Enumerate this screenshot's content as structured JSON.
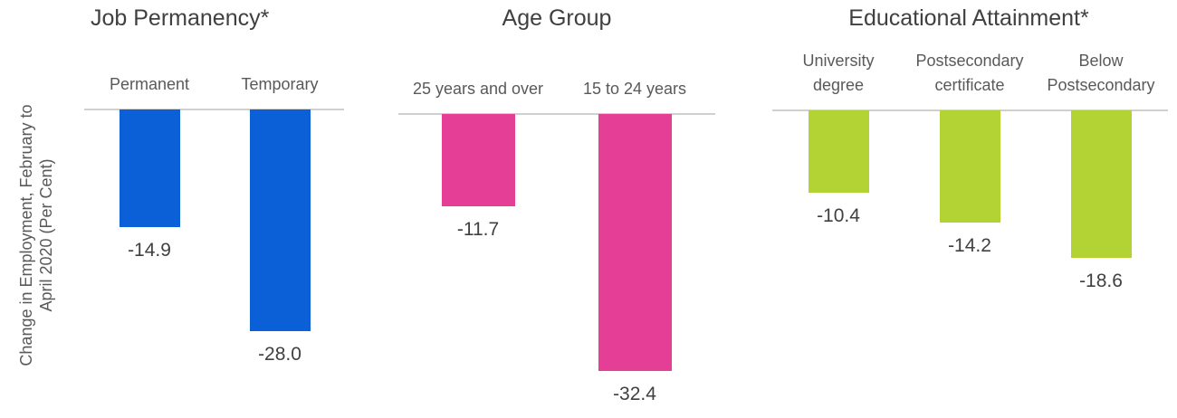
{
  "y_label": "Change in Employment, February to\nApril 2020 (Per Cent)",
  "chart_data": [
    {
      "type": "bar",
      "title": "Job Permanency*",
      "categories": [
        "Permanent",
        "Temporary"
      ],
      "values": [
        -14.9,
        -28.0
      ],
      "value_labels": [
        "-14.9",
        "-28.0"
      ],
      "color": "#0b5fd7"
    },
    {
      "type": "bar",
      "title": "Age Group",
      "categories": [
        "25 years and over",
        "15 to 24 years"
      ],
      "values": [
        -11.7,
        -32.4
      ],
      "value_labels": [
        "-11.7",
        "-32.4"
      ],
      "color": "#e43e96"
    },
    {
      "type": "bar",
      "title": "Educational Attainment*",
      "categories": [
        "University\ndegree",
        "Postsecondary\ncertificate",
        "Below\nPostsecondary"
      ],
      "values": [
        -10.4,
        -14.2,
        -18.6
      ],
      "value_labels": [
        "-10.4",
        "-14.2",
        "-18.6"
      ],
      "color": "#b3d334"
    }
  ]
}
